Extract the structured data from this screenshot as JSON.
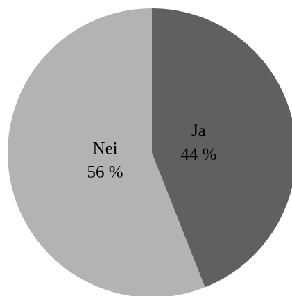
{
  "chart_data": {
    "type": "pie",
    "categories": [
      "Ja",
      "Nei"
    ],
    "values": [
      44,
      56
    ],
    "value_labels": [
      "44 %",
      "56 %"
    ],
    "colors": [
      "#606060",
      "#b3b3b3"
    ],
    "start_angle": 0,
    "direction": "clockwise"
  }
}
